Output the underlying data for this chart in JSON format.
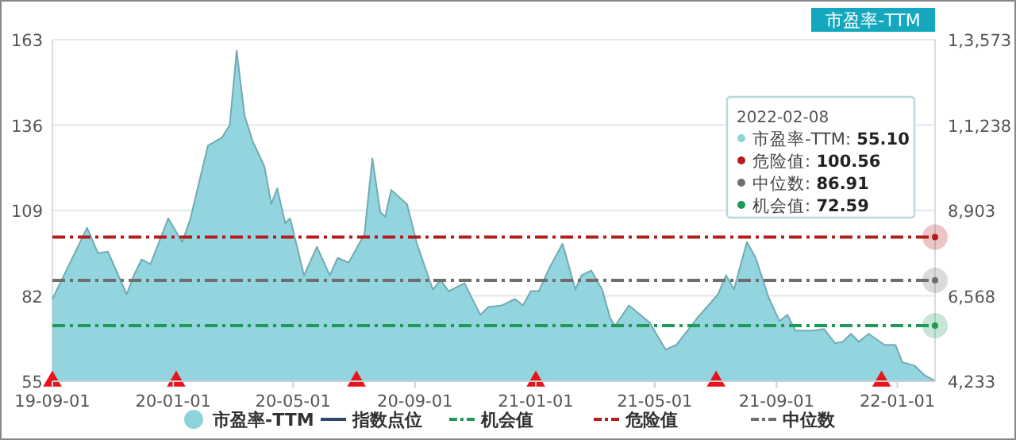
{
  "chart_data": {
    "type": "area",
    "title": "市盈率-TTM",
    "xlim": [
      "2019-09-01",
      "2022-02-08"
    ],
    "xticks": [
      {
        "value": "2019-09-01",
        "label": "19-09-01"
      },
      {
        "value": "2020-01-01",
        "label": "20-01-01"
      },
      {
        "value": "2020-05-01",
        "label": "20-05-01"
      },
      {
        "value": "2020-09-01",
        "label": "20-09-01"
      },
      {
        "value": "2021-01-01",
        "label": "21-01-01"
      },
      {
        "value": "2021-05-01",
        "label": "21-05-01"
      },
      {
        "value": "2021-09-01",
        "label": "21-09-01"
      },
      {
        "value": "2022-01-01",
        "label": "22-01-01"
      }
    ],
    "ylim": [
      55,
      163
    ],
    "yticks": [
      55,
      82,
      109,
      136,
      163
    ],
    "y2lim": [
      4233,
      13573
    ],
    "y2ticks": [
      {
        "value": 4233,
        "label": "4,233"
      },
      {
        "value": 6568,
        "label": "6,568"
      },
      {
        "value": 8903,
        "label": "8,903"
      },
      {
        "value": 11238,
        "label": "1,1,238"
      },
      {
        "value": 13573,
        "label": "1,3,573"
      }
    ],
    "grid": "y",
    "legend": "bottom",
    "series": [
      {
        "name": "市盈率-TTM",
        "color": "#8dd3dc",
        "x": [
          "2019-09-01",
          "2019-10-06",
          "2019-10-17",
          "2019-10-27",
          "2019-11-15",
          "2019-11-23",
          "2019-11-30",
          "2019-12-09",
          "2019-12-27",
          "2020-01-10",
          "2020-01-18",
          "2020-02-05",
          "2020-02-19",
          "2020-02-27",
          "2020-03-05",
          "2020-03-13",
          "2020-03-21",
          "2020-04-02",
          "2020-04-09",
          "2020-04-15",
          "2020-04-23",
          "2020-04-28",
          "2020-05-12",
          "2020-05-25",
          "2020-06-07",
          "2020-06-15",
          "2020-06-26",
          "2020-07-12",
          "2020-07-20",
          "2020-07-28",
          "2020-08-02",
          "2020-08-08",
          "2020-08-24",
          "2020-09-03",
          "2020-09-19",
          "2020-09-27",
          "2020-10-05",
          "2020-10-21",
          "2020-11-06",
          "2020-11-14",
          "2020-11-28",
          "2020-12-11",
          "2020-12-19",
          "2020-12-27",
          "2021-01-04",
          "2021-01-15",
          "2021-01-28",
          "2021-02-10",
          "2021-02-16",
          "2021-02-26",
          "2021-03-09",
          "2021-03-17",
          "2021-03-22",
          "2021-04-05",
          "2021-04-26",
          "2021-05-12",
          "2021-05-23",
          "2021-06-13",
          "2021-07-04",
          "2021-07-12",
          "2021-07-20",
          "2021-08-02",
          "2021-08-11",
          "2021-08-24",
          "2021-09-04",
          "2021-09-12",
          "2021-09-20",
          "2021-10-08",
          "2021-10-19",
          "2021-10-30",
          "2021-11-07",
          "2021-11-15",
          "2021-11-23",
          "2021-12-03",
          "2021-12-19",
          "2021-12-30",
          "2022-01-06",
          "2022-01-18",
          "2022-01-28",
          "2022-02-08"
        ],
        "values": [
          81,
          103.5,
          95.5,
          96,
          82.5,
          89,
          93.5,
          92,
          106.5,
          99,
          106,
          129.5,
          132,
          136,
          159.5,
          139,
          131,
          123,
          111,
          116,
          105,
          106.5,
          88.5,
          97.5,
          88.5,
          94,
          92.5,
          101.5,
          125.5,
          108.5,
          107,
          115.5,
          111,
          98.5,
          84,
          87,
          83.5,
          86,
          76,
          78.5,
          79,
          81,
          79,
          83.5,
          83.5,
          91,
          98.5,
          84,
          88.5,
          90,
          84,
          75,
          72.5,
          79,
          73.5,
          65,
          66.5,
          75,
          82.5,
          88.5,
          84,
          99,
          94,
          81.5,
          74,
          76,
          71,
          71,
          71.5,
          67,
          67.5,
          70,
          67.5,
          70,
          66.5,
          66.5,
          61,
          60,
          57,
          55.1
        ]
      },
      {
        "name": "指数点位",
        "type": "line",
        "color": "#2f4a6b"
      },
      {
        "type": "scatter",
        "marker": "triangle",
        "color": "#e8141b",
        "x": [
          "2019-09-01",
          "2020-01-04",
          "2020-07-04",
          "2021-01-01",
          "2021-07-02",
          "2021-12-16"
        ],
        "values": [
          55,
          55,
          55,
          55,
          55,
          55
        ]
      }
    ],
    "ref_lines": [
      {
        "axis": "y",
        "value": 72.59,
        "label": "机会值",
        "color": "#1f9a57",
        "line_style": "dashdot"
      },
      {
        "axis": "y",
        "value": 100.56,
        "label": "危险值",
        "color": "#b51d1d",
        "line_style": "dashdot"
      },
      {
        "axis": "y",
        "value": 86.91,
        "label": "中位数",
        "color": "#6e6e6e",
        "line_style": "dashdot"
      }
    ],
    "annotations": [
      "2022-02-08",
      "市盈率-TTM: 55.10",
      "危险值: 100.56",
      "中位数: 86.91",
      "机会值: 72.59"
    ]
  }
}
